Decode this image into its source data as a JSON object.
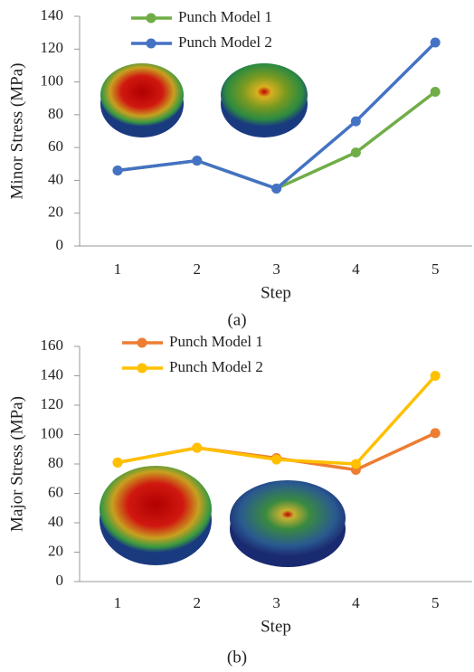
{
  "chart_data": [
    {
      "type": "line",
      "y_label": "Minor Stress (MPa)",
      "x_label": "Step",
      "caption": "(a)",
      "categories": [
        "1",
        "2",
        "3",
        "4",
        "5"
      ],
      "series": [
        {
          "name": "Punch Model 1",
          "color": "#70ad47",
          "values": [
            46,
            52,
            35,
            57,
            94
          ]
        },
        {
          "name": "Punch Model 2",
          "color": "#4472c4",
          "values": [
            46,
            52,
            35,
            76,
            124
          ]
        }
      ],
      "ylim": [
        0,
        140
      ],
      "yticks": [
        0,
        20,
        40,
        60,
        80,
        100,
        120,
        140
      ],
      "legend": "top-left"
    },
    {
      "type": "line",
      "y_label": "Major Stress (MPa)",
      "x_label": "Step",
      "caption": "(b)",
      "categories": [
        "1",
        "2",
        "3",
        "4",
        "5"
      ],
      "series": [
        {
          "name": "Punch Model 1",
          "color": "#ed7d31",
          "values": [
            81,
            91,
            84,
            76,
            101
          ]
        },
        {
          "name": "Punch Model 2",
          "color": "#ffc000",
          "values": [
            81,
            91,
            83,
            80,
            140
          ]
        }
      ],
      "ylim": [
        0,
        160
      ],
      "yticks": [
        0,
        20,
        40,
        60,
        80,
        100,
        120,
        140,
        160
      ],
      "legend": "top-left"
    }
  ]
}
